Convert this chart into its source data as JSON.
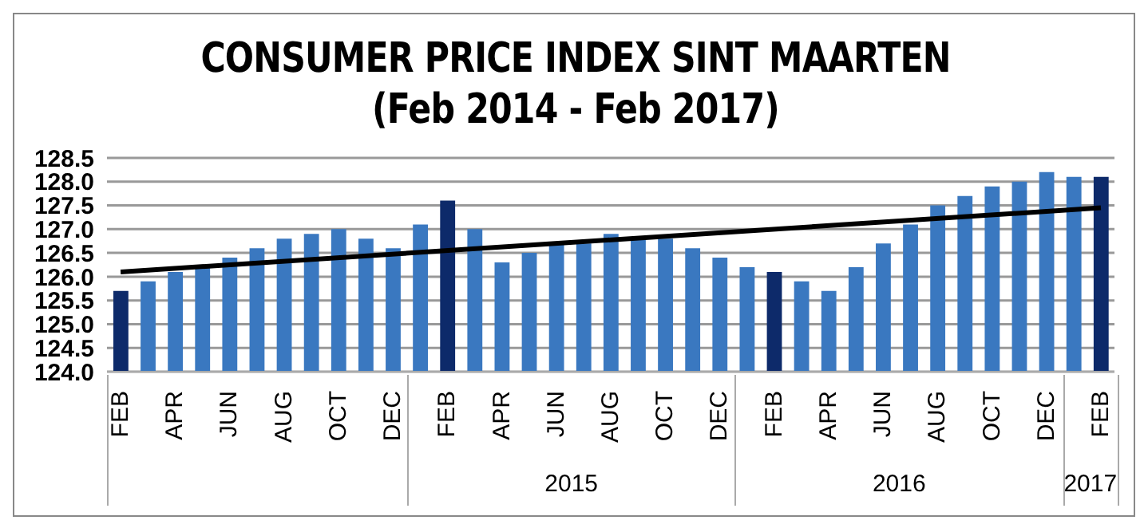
{
  "chart_data": {
    "type": "bar",
    "title": "CONSUMER PRICE INDEX SINT MAARTEN",
    "subtitle": "(Feb 2014 - Feb 2017)",
    "categories": [
      "FEB",
      null,
      "APR",
      null,
      "JUN",
      null,
      "AUG",
      null,
      "OCT",
      null,
      "DEC",
      null,
      "FEB",
      null,
      "APR",
      null,
      "JUN",
      null,
      "AUG",
      null,
      "OCT",
      null,
      "DEC",
      null,
      "FEB",
      null,
      "APR",
      null,
      "JUN",
      null,
      "AUG",
      null,
      "OCT",
      null,
      "DEC",
      null,
      "FEB"
    ],
    "series": [
      {
        "values": [
          125.7,
          125.9,
          126.1,
          126.2,
          126.4,
          126.6,
          126.8,
          126.9,
          127.0,
          126.8,
          126.6,
          127.1,
          127.6,
          127.0,
          126.3,
          126.5,
          126.7,
          126.7,
          126.9,
          126.8,
          126.8,
          126.6,
          126.4,
          126.2,
          126.1,
          125.9,
          125.7,
          126.2,
          126.7,
          127.1,
          127.5,
          127.7,
          127.9,
          128.0,
          128.2,
          128.1,
          128.1
        ],
        "colors": [
          "#0d2a6a",
          "#3a78c0",
          "#3a78c0",
          "#3a78c0",
          "#3a78c0",
          "#3a78c0",
          "#3a78c0",
          "#3a78c0",
          "#3a78c0",
          "#3a78c0",
          "#3a78c0",
          "#3a78c0",
          "#0d2a6a",
          "#3a78c0",
          "#3a78c0",
          "#3a78c0",
          "#3a78c0",
          "#3a78c0",
          "#3a78c0",
          "#3a78c0",
          "#3a78c0",
          "#3a78c0",
          "#3a78c0",
          "#3a78c0",
          "#0d2a6a",
          "#3a78c0",
          "#3a78c0",
          "#3a78c0",
          "#3a78c0",
          "#3a78c0",
          "#3a78c0",
          "#3a78c0",
          "#3a78c0",
          "#3a78c0",
          "#3a78c0",
          "#3a78c0",
          "#0d2a6a"
        ]
      },
      {
        "type": "line",
        "color": "#000000",
        "values": [
          126.1,
          null,
          null,
          null,
          null,
          null,
          null,
          null,
          null,
          null,
          null,
          null,
          null,
          null,
          null,
          null,
          null,
          null,
          null,
          null,
          null,
          null,
          null,
          null,
          null,
          null,
          null,
          null,
          null,
          null,
          null,
          null,
          null,
          null,
          null,
          null,
          127.45
        ]
      }
    ],
    "ylim": [
      124.0,
      128.5
    ],
    "yticks": [
      {
        "value": 124.0,
        "label": "124.0"
      },
      {
        "value": 124.5,
        "label": "124.5"
      },
      {
        "value": 125.0,
        "label": "125.0"
      },
      {
        "value": 125.5,
        "label": "125.5"
      },
      {
        "value": 126.0,
        "label": "126.0"
      },
      {
        "value": 126.5,
        "label": "126.5"
      },
      {
        "value": 127.0,
        "label": "127.0"
      },
      {
        "value": 127.5,
        "label": "127.5"
      },
      {
        "value": 128.0,
        "label": "128.0"
      },
      {
        "value": 128.5,
        "label": "128.5"
      }
    ],
    "grid": "y",
    "legend": false,
    "annotations": [
      "2015",
      "2016",
      "2017"
    ]
  }
}
